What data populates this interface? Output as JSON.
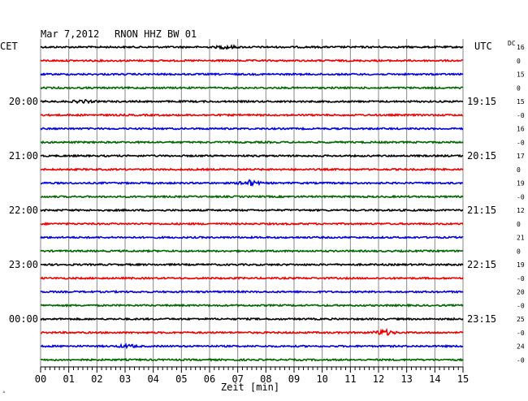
{
  "header": {
    "date": "Mar 7,2012",
    "station": "RNON HHZ BW 01",
    "left_timezone": "CET",
    "right_timezone": "UTC",
    "dc_label": "DC"
  },
  "chart_data": {
    "type": "line",
    "xlabel": "Zeit [min]",
    "xlim": [
      0,
      15
    ],
    "x_ticks": [
      "00",
      "01",
      "02",
      "03",
      "04",
      "05",
      "06",
      "07",
      "08",
      "09",
      "10",
      "11",
      "12",
      "13",
      "14",
      "15"
    ],
    "grid": true,
    "trace_colors": [
      "#000000",
      "#ee0000",
      "#0000dd",
      "#006600"
    ],
    "hour_labels_cet": [
      {
        "trace": 4,
        "label": "20:00"
      },
      {
        "trace": 8,
        "label": "21:00"
      },
      {
        "trace": 12,
        "label": "22:00"
      },
      {
        "trace": 16,
        "label": "23:00"
      },
      {
        "trace": 20,
        "label": "00:00"
      }
    ],
    "hour_labels_utc": [
      {
        "trace": 4,
        "label": "19:15"
      },
      {
        "trace": 8,
        "label": "20:15"
      },
      {
        "trace": 12,
        "label": "21:15"
      },
      {
        "trace": 16,
        "label": "22:15"
      },
      {
        "trace": 20,
        "label": "23:15"
      }
    ],
    "dc_offsets": [
      "16",
      "0",
      "15",
      "0",
      "15",
      "-0",
      "16",
      "-0",
      "17",
      "0",
      "19",
      "-0",
      "12",
      "0",
      "21",
      "0",
      "19",
      "-0",
      "20",
      "-0",
      "25",
      "-0",
      "24",
      "-0"
    ],
    "events": [
      {
        "trace": 0,
        "minute": 6.6,
        "amplitude": 1.6
      },
      {
        "trace": 4,
        "minute": 1.5,
        "amplitude": 1.4
      },
      {
        "trace": 10,
        "minute": 7.4,
        "amplitude": 3.2
      },
      {
        "trace": 21,
        "minute": 12.2,
        "amplitude": 3.0
      },
      {
        "trace": 22,
        "minute": 3.1,
        "amplitude": 1.5
      }
    ],
    "trace_count": 24
  }
}
